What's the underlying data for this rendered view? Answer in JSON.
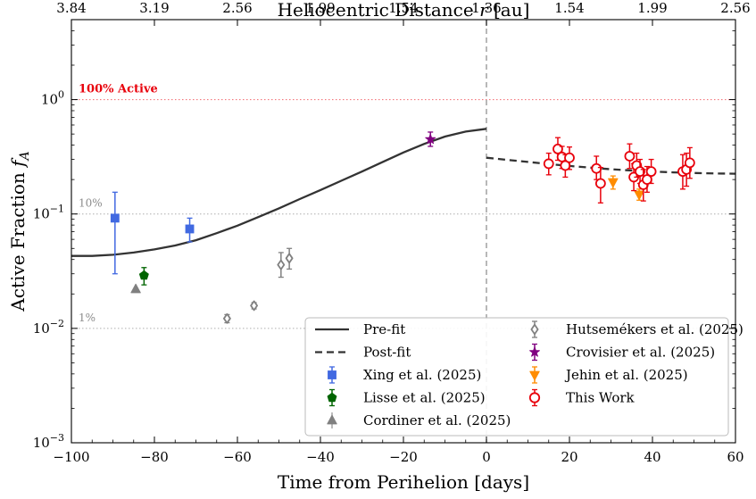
{
  "chart_data": {
    "type": "scatter",
    "xlabel": "Time from Perihelion [days]",
    "ylabel": "Active Fraction f_A",
    "top_axis_label": "Heliocentric Distance r [au]",
    "xlim": [
      -100,
      60
    ],
    "ylim": [
      0.001,
      5
    ],
    "yscale": "log",
    "x_ticks": [
      -100,
      -80,
      -60,
      -40,
      -20,
      0,
      20,
      40,
      60
    ],
    "x_tick_labels": [
      "−100",
      "−80",
      "−60",
      "−40",
      "−20",
      "0",
      "20",
      "40",
      "60"
    ],
    "y_ticks": [
      0.001,
      0.01,
      0.1,
      1
    ],
    "top_ticks": [
      {
        "x": -100,
        "label": "3.84"
      },
      {
        "x": -80,
        "label": "3.19"
      },
      {
        "x": -60,
        "label": "2.56"
      },
      {
        "x": -40,
        "label": "1.99"
      },
      {
        "x": -20,
        "label": "1.54"
      },
      {
        "x": 0,
        "label": "1.36"
      },
      {
        "x": 20,
        "label": "1.54"
      },
      {
        "x": 40,
        "label": "1.99"
      },
      {
        "x": 60,
        "label": "2.56"
      }
    ],
    "reference_lines": [
      {
        "y": 1.0,
        "label": "100% Active",
        "color": "#e8000b"
      },
      {
        "y": 0.1,
        "label": "10%",
        "color": "#8c8c8c"
      },
      {
        "y": 0.01,
        "label": "1%",
        "color": "#8c8c8c"
      }
    ],
    "perihelion_line_x": 0,
    "curves": [
      {
        "name": "Pre-fit",
        "style": "solid",
        "color": "#333333",
        "x": [
          -100,
          -95,
          -90,
          -85,
          -80,
          -75,
          -70,
          -65,
          -60,
          -55,
          -50,
          -45,
          -40,
          -35,
          -30,
          -25,
          -20,
          -15,
          -10,
          -5,
          0
        ],
        "y": [
          0.043,
          0.043,
          0.044,
          0.046,
          0.049,
          0.053,
          0.059,
          0.068,
          0.079,
          0.094,
          0.112,
          0.135,
          0.162,
          0.195,
          0.235,
          0.285,
          0.345,
          0.41,
          0.475,
          0.525,
          0.555
        ]
      },
      {
        "name": "Post-fit",
        "style": "dashed",
        "color": "#333333",
        "x": [
          0,
          5,
          10,
          15,
          20,
          25,
          30,
          35,
          40,
          45,
          50,
          55,
          60
        ],
        "y": [
          0.31,
          0.297,
          0.285,
          0.273,
          0.263,
          0.254,
          0.246,
          0.24,
          0.235,
          0.231,
          0.228,
          0.226,
          0.225
        ]
      }
    ],
    "series": [
      {
        "name": "Xing et al. (2025)",
        "marker": "square",
        "color": "#4169e1",
        "filled": true,
        "points": [
          {
            "x": -89.5,
            "y": 0.092,
            "lo": 0.03,
            "hi": 0.155
          },
          {
            "x": -71.5,
            "y": 0.074,
            "lo": 0.057,
            "hi": 0.092
          }
        ]
      },
      {
        "name": "Lisse et al. (2025)",
        "marker": "pentagon",
        "color": "#006400",
        "filled": true,
        "points": [
          {
            "x": -82.5,
            "y": 0.029,
            "lo": 0.024,
            "hi": 0.034
          }
        ]
      },
      {
        "name": "Cordiner et al. (2025)",
        "marker": "triangle-up",
        "color": "#808080",
        "filled": true,
        "points": [
          {
            "x": -84.5,
            "y": 0.022,
            "lo": null,
            "hi": null
          }
        ]
      },
      {
        "name": "Hutsemékers et al. (2025)",
        "marker": "diamond",
        "color": "#808080",
        "filled": false,
        "points": [
          {
            "x": -62.5,
            "y": 0.0122,
            "lo": 0.0112,
            "hi": 0.0132
          },
          {
            "x": -56,
            "y": 0.0158,
            "lo": 0.0148,
            "hi": 0.0168
          },
          {
            "x": -49.5,
            "y": 0.036,
            "lo": 0.028,
            "hi": 0.046
          },
          {
            "x": -47.5,
            "y": 0.041,
            "lo": 0.033,
            "hi": 0.05
          }
        ]
      },
      {
        "name": "Crovisier et al. (2025)",
        "marker": "star",
        "color": "#800080",
        "filled": true,
        "points": [
          {
            "x": -13.5,
            "y": 0.45,
            "lo": 0.39,
            "hi": 0.52
          }
        ]
      },
      {
        "name": "Jehin et al. (2025)",
        "marker": "triangle-down",
        "color": "#ff8c00",
        "filled": true,
        "points": [
          {
            "x": 30.5,
            "y": 0.19,
            "lo": 0.165,
            "hi": 0.215
          },
          {
            "x": 36.8,
            "y": 0.148,
            "lo": 0.132,
            "hi": 0.165
          }
        ]
      },
      {
        "name": "This Work",
        "marker": "circle",
        "color": "#e8000b",
        "filled": false,
        "points": [
          {
            "x": 15,
            "y": 0.275,
            "lo": 0.22,
            "hi": 0.34
          },
          {
            "x": 17.2,
            "y": 0.37,
            "lo": 0.295,
            "hi": 0.465
          },
          {
            "x": 18.2,
            "y": 0.315,
            "lo": 0.25,
            "hi": 0.39
          },
          {
            "x": 19.0,
            "y": 0.265,
            "lo": 0.21,
            "hi": 0.33
          },
          {
            "x": 20.0,
            "y": 0.31,
            "lo": 0.245,
            "hi": 0.385
          },
          {
            "x": 26.5,
            "y": 0.25,
            "lo": 0.2,
            "hi": 0.32
          },
          {
            "x": 27.5,
            "y": 0.185,
            "lo": 0.125,
            "hi": 0.255
          },
          {
            "x": 34.5,
            "y": 0.32,
            "lo": 0.25,
            "hi": 0.41
          },
          {
            "x": 35.5,
            "y": 0.21,
            "lo": 0.16,
            "hi": 0.275
          },
          {
            "x": 36.2,
            "y": 0.265,
            "lo": 0.21,
            "hi": 0.34
          },
          {
            "x": 37.0,
            "y": 0.235,
            "lo": 0.185,
            "hi": 0.3
          },
          {
            "x": 37.8,
            "y": 0.18,
            "lo": 0.13,
            "hi": 0.245
          },
          {
            "x": 38.7,
            "y": 0.2,
            "lo": 0.155,
            "hi": 0.26
          },
          {
            "x": 39.7,
            "y": 0.235,
            "lo": 0.185,
            "hi": 0.3
          },
          {
            "x": 47.3,
            "y": 0.235,
            "lo": 0.165,
            "hi": 0.33
          },
          {
            "x": 48.2,
            "y": 0.245,
            "lo": 0.175,
            "hi": 0.34
          },
          {
            "x": 49.0,
            "y": 0.28,
            "lo": 0.205,
            "hi": 0.38
          }
        ]
      }
    ],
    "legend": {
      "location": "lower-right",
      "columns": [
        [
          "Pre-fit",
          "Post-fit",
          "Xing et al. (2025)",
          "Lisse et al. (2025)",
          "Cordiner et al. (2025)"
        ],
        [
          "Hutsemékers et al. (2025)",
          "Crovisier et al. (2025)",
          "Jehin et al. (2025)",
          "This Work"
        ]
      ]
    }
  }
}
